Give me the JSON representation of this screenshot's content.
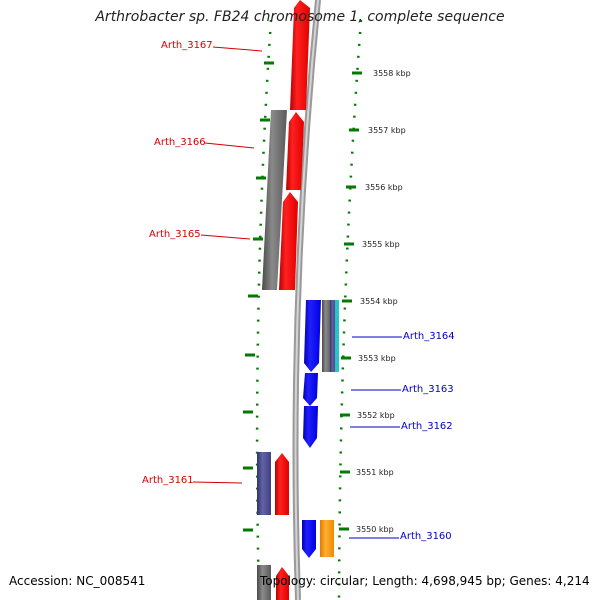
{
  "title": "Arthrobacter sp. FB24 chromosome 1, complete sequence",
  "accession": "Accession: NC_008541",
  "summary": "Topology: circular; Length: 4,698,945 bp; Genes: 4,214",
  "colors": {
    "forward_gene": "#ff0000",
    "reverse_gene": "#0000ff",
    "grey_feature": "#6f6f6f",
    "purple_feature": "#4b4b8e",
    "orange_feature": "#ff9900",
    "cyan_feature": "#29c4c4",
    "tick": "#007a00",
    "backbone": "#999999"
  },
  "scale": {
    "labels": [
      "3558 kbp",
      "3557 kbp",
      "3556 kbp",
      "3555 kbp",
      "3554 kbp",
      "3553 kbp",
      "3552 kbp",
      "3551 kbp",
      "3550 kbp"
    ]
  },
  "gene_labels": {
    "g3167": "Arth_3167",
    "g3166": "Arth_3166",
    "g3165": "Arth_3165",
    "g3164": "Arth_3164",
    "g3163": "Arth_3163",
    "g3162": "Arth_3162",
    "g3161": "Arth_3161",
    "g3160": "Arth_3160"
  }
}
